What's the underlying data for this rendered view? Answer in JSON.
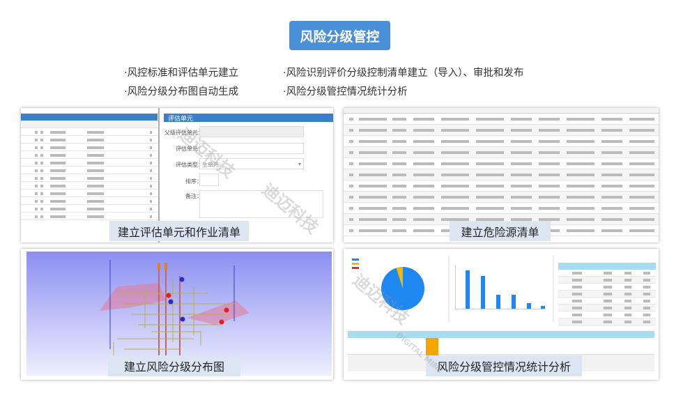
{
  "header": {
    "title": "风险分级管控"
  },
  "features": [
    "·风控标准和评估单元建立",
    "·风险识别评价分级控制清单建立（导入）、审批和发布",
    "·风险分级分布图自动生成",
    "·风险分级管控情况统计分析"
  ],
  "panels": [
    {
      "caption": "建立评估单元和作业清单",
      "form_title": "评估单元",
      "form_labels": [
        "父级评估单元：",
        "评估单元：",
        "评估类型：",
        "排序：",
        "备注："
      ],
      "type_value": "生单元"
    },
    {
      "caption": "建立危险源清单"
    },
    {
      "caption": "建立风险分级分布图"
    },
    {
      "caption": "风险分级管控情况统计分析"
    }
  ],
  "watermark": {
    "text": "迪迈科技",
    "subtext": "DIGITAL MINE"
  },
  "colors": {
    "accent": "#4a90d9",
    "caption_bg": "#dbe6f2",
    "chart_blue": "#1e88f0",
    "chart_yellow": "#f5b800"
  }
}
